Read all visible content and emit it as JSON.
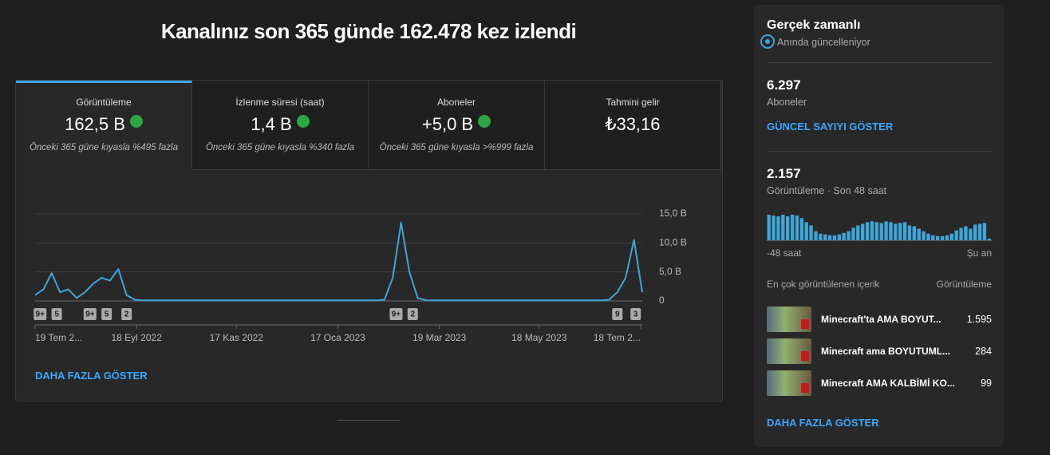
{
  "header": {
    "title": "Kanalınız son 365 günde 162.478 kez izlendi"
  },
  "metrics": [
    {
      "label": "Görüntüleme",
      "value": "162,5 B",
      "note": "Önceki 365 güne kıyasla %495 fazla"
    },
    {
      "label": "İzlenme süresi (saat)",
      "value": "1,4 B",
      "note": "Önceki 365 güne kıyasla %340 fazla"
    },
    {
      "label": "Aboneler",
      "value": "+5,0 B",
      "note": "Önceki 365 güne kıyasla >%999 fazla"
    },
    {
      "label": "Tahmini gelir",
      "value": "₺33,16"
    }
  ],
  "chart_data": {
    "type": "line",
    "color": "#3ea6d8",
    "x": [
      0,
      5,
      10,
      15,
      20,
      25,
      30,
      35,
      40,
      45,
      50,
      55,
      60,
      65,
      70,
      75,
      80,
      85,
      90,
      95,
      100,
      105,
      110,
      115,
      120,
      125,
      130,
      135,
      140,
      145,
      150,
      155,
      160,
      165,
      170,
      175,
      180,
      185,
      190,
      195,
      200,
      205,
      210,
      215,
      220,
      225,
      230,
      235,
      240,
      245,
      250,
      255,
      260,
      265,
      270,
      275,
      280,
      285,
      290,
      295,
      300,
      305,
      310,
      315,
      320,
      325,
      330,
      335,
      340,
      345,
      350,
      355,
      360,
      365
    ],
    "values": [
      1,
      2,
      4.8,
      1.5,
      2,
      0.5,
      1.5,
      3,
      4,
      3.5,
      5.5,
      1,
      0.2,
      0.1,
      0.1,
      0.1,
      0.1,
      0.1,
      0.1,
      0.1,
      0.1,
      0.1,
      0.1,
      0.1,
      0.1,
      0.1,
      0.1,
      0.1,
      0.1,
      0.1,
      0.1,
      0.1,
      0.1,
      0.1,
      0.1,
      0.1,
      0.1,
      0.1,
      0.1,
      0.1,
      0.1,
      0.1,
      0.2,
      4,
      13.5,
      5,
      0.5,
      0.1,
      0.1,
      0.1,
      0.1,
      0.1,
      0.1,
      0.1,
      0.1,
      0.1,
      0.1,
      0.1,
      0.1,
      0.1,
      0.1,
      0.1,
      0.1,
      0.1,
      0.1,
      0.1,
      0.1,
      0.1,
      0.1,
      0.2,
      1.5,
      4,
      10.5,
      1.5
    ],
    "xlim": [
      0,
      365
    ],
    "xticks": [
      {
        "value": 0,
        "label": "19 Tem 2..."
      },
      {
        "value": 61,
        "label": "18 Eyl 2022"
      },
      {
        "value": 121,
        "label": "17 Kas 2022"
      },
      {
        "value": 182,
        "label": "17 Oca 2023"
      },
      {
        "value": 243,
        "label": "19 Mar 2023"
      },
      {
        "value": 303,
        "label": "18 May 2023"
      },
      {
        "value": 364,
        "label": "18 Tem 2..."
      }
    ],
    "ylim": [
      0,
      15
    ],
    "yticks": [
      0,
      {
        "value": 5,
        "label": "5,0 B"
      },
      {
        "value": 10,
        "label": "10,0 B"
      },
      {
        "value": 15,
        "label": "15,0 B"
      }
    ],
    "grid": true,
    "annotations": [
      {
        "x": 3,
        "label": "9+"
      },
      {
        "x": 13,
        "label": "5"
      },
      {
        "x": 33,
        "label": "9+"
      },
      {
        "x": 43,
        "label": "5"
      },
      {
        "x": 55,
        "label": "2"
      },
      {
        "x": 217,
        "label": "9+"
      },
      {
        "x": 227,
        "label": "2"
      },
      {
        "x": 350,
        "label": "9"
      },
      {
        "x": 361,
        "label": "3"
      }
    ]
  },
  "more_link": "DAHA FAZLA GÖSTER",
  "realtime": {
    "title": "Gerçek zamanlı",
    "status": "Anında güncelleniyor",
    "subscribers": "6.297",
    "subscribers_label": "Aboneler",
    "show_count": "GÜNCEL SAYIYI GÖSTER",
    "views": "2.157",
    "views_label": "Görüntüleme · Son 48 saat",
    "bars": {
      "type": "bar",
      "color": "#3ea6d8",
      "values": [
        62,
        60,
        58,
        62,
        58,
        62,
        60,
        54,
        44,
        36,
        22,
        16,
        14,
        12,
        12,
        14,
        18,
        22,
        30,
        36,
        40,
        44,
        46,
        44,
        42,
        46,
        44,
        40,
        42,
        44,
        36,
        34,
        28,
        22,
        16,
        12,
        10,
        10,
        12,
        16,
        24,
        30,
        34,
        28,
        38,
        40,
        42,
        4
      ]
    },
    "start_label": "-48 saat",
    "end_label": "Şu an",
    "top_heading": "En çok görüntülenen içerik",
    "top_metric": "Görüntüleme",
    "top_items": [
      {
        "title": "Minecraft'ta AMA BOYUT...",
        "views": "1.595"
      },
      {
        "title": "Minecraft ama BOYUTUML...",
        "views": "284"
      },
      {
        "title": "Minecraft AMA KALBİMİ KO...",
        "views": "99"
      }
    ],
    "more_link": "DAHA FAZLA GÖSTER"
  }
}
